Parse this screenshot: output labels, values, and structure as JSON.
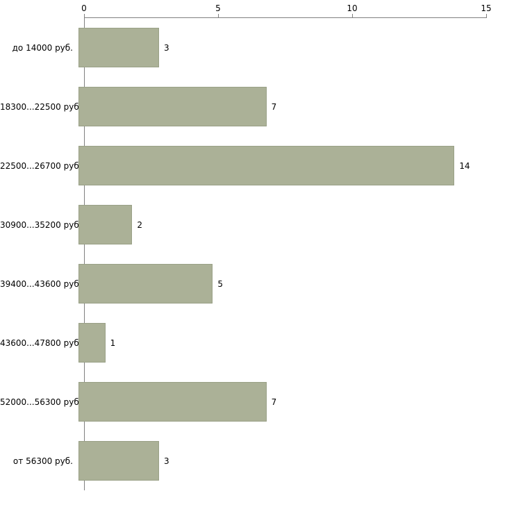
{
  "chart_data": {
    "type": "bar",
    "orientation": "horizontal",
    "title": "",
    "xlabel": "",
    "ylabel": "",
    "categories": [
      "до 14000 руб.",
      "18300...22500 руб.",
      "22500...26700 руб.",
      "30900...35200 руб.",
      "39400...43600 руб.",
      "43600...47800 руб.",
      "52000...56300 руб.",
      "от 56300 руб."
    ],
    "values": [
      3,
      7,
      14,
      2,
      5,
      1,
      7,
      3
    ],
    "xlim": [
      0,
      15
    ],
    "x_ticks": [
      "0",
      "5",
      "10",
      "15"
    ],
    "grid": false,
    "legend_position": "none",
    "colors": {
      "bar_fill": "#abb197",
      "bar_border": "#99a086",
      "axis": "#7f7f7f",
      "text": "#000000",
      "background": "#ffffff"
    }
  }
}
